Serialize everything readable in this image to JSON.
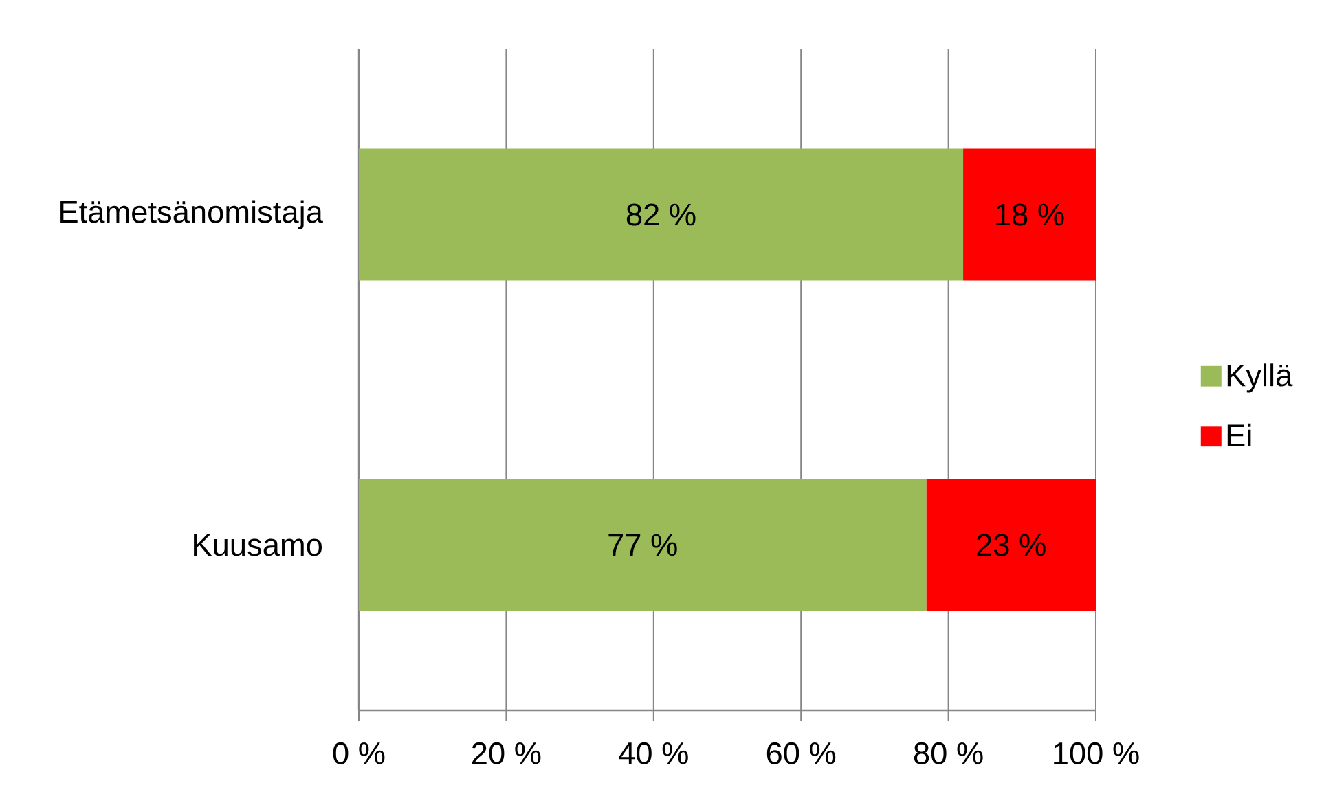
{
  "chart_data": {
    "type": "bar",
    "orientation": "horizontal",
    "stacked": true,
    "categories": [
      "Etämetsänomistaja",
      "Kuusamo"
    ],
    "series": [
      {
        "name": "Kyllä",
        "color": "#9bbb59",
        "values": [
          82,
          77
        ],
        "value_labels": [
          "82 %",
          "77 %"
        ]
      },
      {
        "name": "Ei",
        "color": "#ff0000",
        "values": [
          18,
          23
        ],
        "value_labels": [
          "18 %",
          "23 %"
        ]
      }
    ],
    "xlim": [
      0,
      100
    ],
    "xticks": [
      {
        "value": 0,
        "label": "0 %"
      },
      {
        "value": 20,
        "label": "20 %"
      },
      {
        "value": 40,
        "label": "40 %"
      },
      {
        "value": 60,
        "label": "60 %"
      },
      {
        "value": 80,
        "label": "80 %"
      },
      {
        "value": 100,
        "label": "100 %"
      }
    ],
    "grid": "x",
    "legend": "right"
  }
}
